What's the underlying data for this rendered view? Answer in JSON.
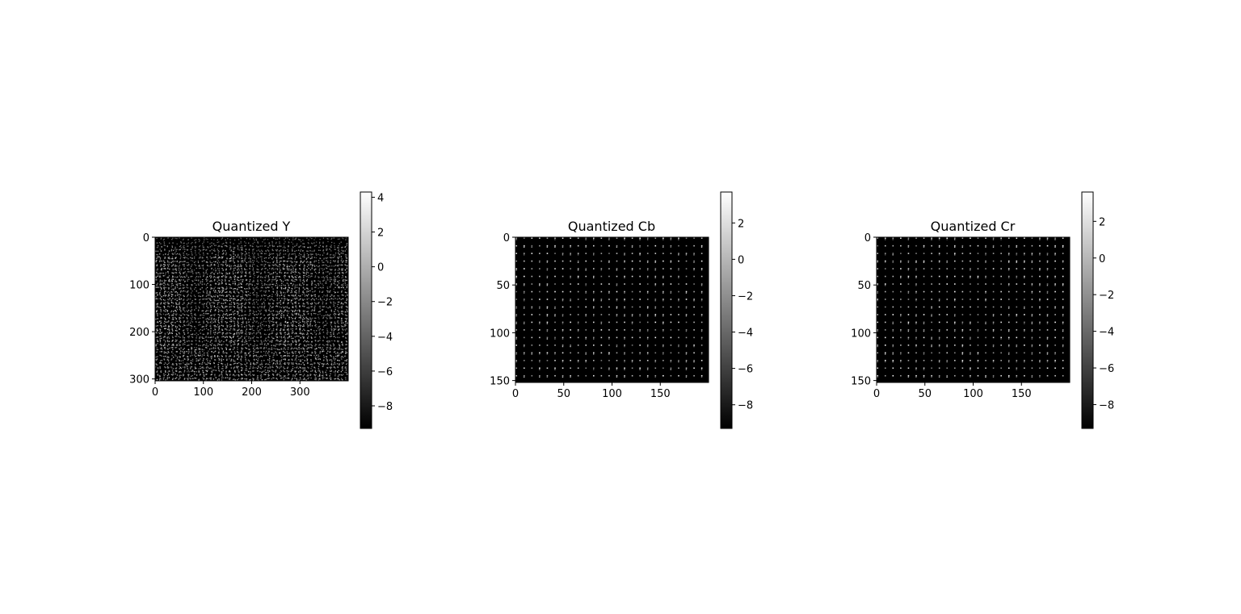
{
  "chart_data": [
    {
      "type": "heatmap",
      "title": "Quantized Y",
      "cmap": "gray",
      "image_size": [
        400,
        304
      ],
      "xlim": [
        0,
        400
      ],
      "ylim": [
        304,
        0
      ],
      "xticks": [
        0,
        100,
        200,
        300
      ],
      "xtick_labels": [
        "0",
        "100",
        "200",
        "300"
      ],
      "yticks": [
        0,
        100,
        200,
        300
      ],
      "ytick_labels": [
        "0",
        "100",
        "200",
        "300"
      ],
      "colorbar": {
        "range": [
          -9.3,
          4.3
        ],
        "ticks": [
          4,
          2,
          0,
          -2,
          -4,
          -6,
          -8
        ],
        "tick_labels": [
          "4",
          "2",
          "0",
          "−2",
          "−4",
          "−6",
          "−8"
        ]
      }
    },
    {
      "type": "heatmap",
      "title": "Quantized Cb",
      "cmap": "gray",
      "image_size": [
        200,
        152
      ],
      "xlim": [
        0,
        200
      ],
      "ylim": [
        152,
        0
      ],
      "xticks": [
        0,
        50,
        100,
        150
      ],
      "xtick_labels": [
        "0",
        "50",
        "100",
        "150"
      ],
      "yticks": [
        0,
        50,
        100,
        150
      ],
      "ytick_labels": [
        "0",
        "50",
        "100",
        "150"
      ],
      "colorbar": {
        "range": [
          -9.3,
          3.7
        ],
        "ticks": [
          2,
          0,
          -2,
          -4,
          -6,
          -8
        ],
        "tick_labels": [
          "2",
          "0",
          "−2",
          "−4",
          "−6",
          "−8"
        ]
      }
    },
    {
      "type": "heatmap",
      "title": "Quantized Cr",
      "cmap": "gray",
      "image_size": [
        200,
        152
      ],
      "xlim": [
        0,
        200
      ],
      "ylim": [
        152,
        0
      ],
      "xticks": [
        0,
        50,
        100,
        150
      ],
      "xtick_labels": [
        "0",
        "50",
        "100",
        "150"
      ],
      "yticks": [
        0,
        50,
        100,
        150
      ],
      "ytick_labels": [
        "0",
        "50",
        "100",
        "150"
      ],
      "colorbar": {
        "range": [
          -9.3,
          3.6
        ],
        "ticks": [
          2,
          0,
          -2,
          -4,
          -6,
          -8
        ],
        "tick_labels": [
          "2",
          "0",
          "−2",
          "−4",
          "−6",
          "−8"
        ]
      }
    }
  ]
}
